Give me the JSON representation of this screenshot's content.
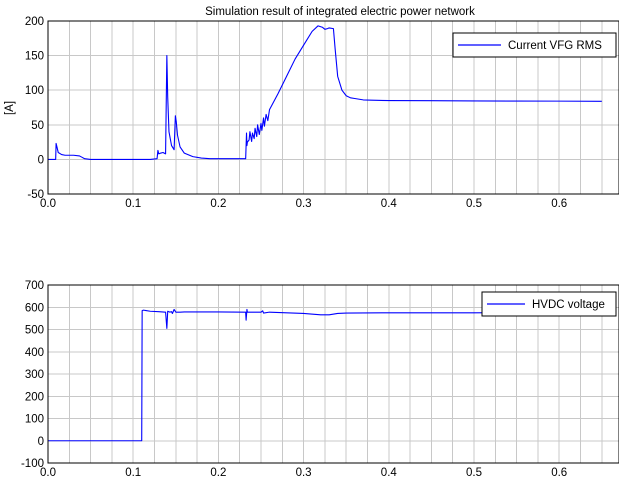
{
  "chart_data": [
    {
      "type": "line",
      "title": "Simulation result of integrated electric power network",
      "xlabel": "",
      "ylabel": "[A]",
      "xlim": [
        0,
        0.65
      ],
      "ylim": [
        -50,
        200
      ],
      "xticks": [
        "0.0",
        "0.1",
        "0.2",
        "0.3",
        "0.4",
        "0.5",
        "0.6"
      ],
      "yticks": [
        "-50",
        "0",
        "50",
        "100",
        "150",
        "200"
      ],
      "grid": true,
      "legend_position": "top-right",
      "line_color": "#0000ff",
      "series": [
        {
          "name": "Current VFG RMS",
          "x": [
            0,
            0.009,
            0.0095,
            0.0105,
            0.012,
            0.016,
            0.02,
            0.03,
            0.037,
            0.04,
            0.043,
            0.05,
            0.06,
            0.08,
            0.1,
            0.12,
            0.128,
            0.129,
            0.13,
            0.132,
            0.135,
            0.138,
            0.1395,
            0.1405,
            0.142,
            0.145,
            0.148,
            0.1495,
            0.1505,
            0.152,
            0.155,
            0.16,
            0.17,
            0.18,
            0.19,
            0.2,
            0.21,
            0.22,
            0.232,
            0.233,
            0.2335,
            0.234,
            0.236,
            0.237,
            0.239,
            0.24,
            0.242,
            0.243,
            0.245,
            0.246,
            0.248,
            0.25,
            0.251,
            0.253,
            0.254,
            0.256,
            0.258,
            0.26,
            0.27,
            0.28,
            0.29,
            0.3,
            0.31,
            0.317,
            0.322,
            0.325,
            0.328,
            0.33,
            0.335,
            0.337,
            0.34,
            0.345,
            0.35,
            0.355,
            0.36,
            0.37,
            0.38,
            0.4,
            0.45,
            0.5,
            0.55,
            0.6,
            0.65
          ],
          "y": [
            0,
            0,
            23,
            18,
            10,
            7,
            6,
            6,
            5,
            3,
            1,
            0,
            0,
            0,
            0,
            0,
            1,
            13,
            8,
            9,
            10,
            8,
            150,
            90,
            40,
            20,
            14,
            63,
            55,
            35,
            18,
            9,
            4,
            2,
            1,
            1,
            1,
            1,
            1,
            38,
            20,
            25,
            28,
            40,
            26,
            38,
            30,
            45,
            33,
            50,
            36,
            52,
            42,
            60,
            48,
            65,
            56,
            72,
            95,
            120,
            145,
            165,
            185,
            193,
            191,
            188,
            189,
            190,
            189,
            160,
            120,
            100,
            92,
            89,
            88,
            86,
            85.5,
            85,
            84.8,
            84.5,
            84.3,
            84.2,
            84
          ]
        }
      ]
    },
    {
      "type": "line",
      "title": "",
      "xlabel": "",
      "ylabel": "",
      "xlim": [
        0,
        0.65
      ],
      "ylim": [
        -100,
        700
      ],
      "xticks": [
        "0.0",
        "0.1",
        "0.2",
        "0.3",
        "0.4",
        "0.5",
        "0.6"
      ],
      "yticks": [
        "-100",
        "0",
        "100",
        "200",
        "300",
        "400",
        "500",
        "600",
        "700"
      ],
      "grid": true,
      "legend_position": "top-right",
      "line_color": "#0000ff",
      "series": [
        {
          "name": "HVDC voltage",
          "x": [
            0,
            0.11,
            0.1105,
            0.112,
            0.115,
            0.12,
            0.13,
            0.138,
            0.1395,
            0.1405,
            0.143,
            0.145,
            0.146,
            0.148,
            0.15,
            0.155,
            0.16,
            0.2,
            0.232,
            0.2325,
            0.2335,
            0.234,
            0.24,
            0.25,
            0.252,
            0.253,
            0.26,
            0.3,
            0.32,
            0.33,
            0.34,
            0.35,
            0.4,
            0.45,
            0.5,
            0.55,
            0.6,
            0.65
          ],
          "y": [
            0,
            0,
            585,
            587,
            585,
            582,
            580,
            578,
            505,
            582,
            578,
            580,
            572,
            590,
            578,
            578,
            579,
            579,
            578,
            542,
            590,
            578,
            578,
            578,
            584,
            574,
            578,
            572,
            566,
            566,
            572,
            574,
            575,
            575,
            575,
            576,
            576,
            576
          ]
        }
      ]
    }
  ]
}
